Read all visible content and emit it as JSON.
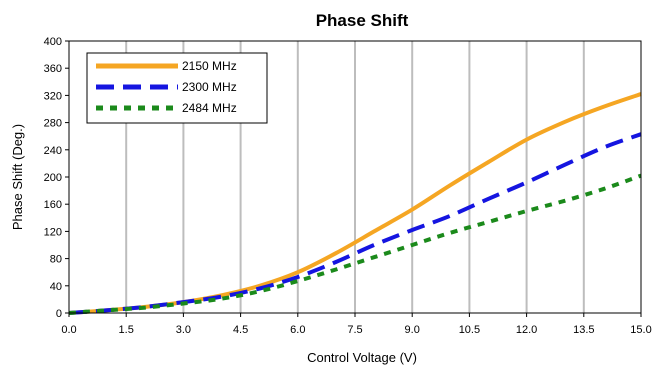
{
  "chart_data": {
    "type": "line",
    "title": "Phase Shift",
    "xlabel": "Control Voltage (V)",
    "ylabel": "Phase Shift (Deg.)",
    "xlim": [
      0,
      15
    ],
    "ylim": [
      0,
      400
    ],
    "x_ticks": [
      0,
      1.5,
      3,
      4.5,
      6,
      7.5,
      9,
      10.5,
      12,
      13.5,
      15
    ],
    "x_tick_labels": [
      "0.0",
      "1.5",
      "3.0",
      "4.5",
      "6.0",
      "7.5",
      "9.0",
      "10.5",
      "12.0",
      "13.5",
      "15.0"
    ],
    "y_ticks": [
      0,
      40,
      80,
      120,
      160,
      200,
      240,
      280,
      320,
      360,
      400
    ],
    "y_tick_labels": [
      "0",
      "40",
      "80",
      "120",
      "160",
      "200",
      "240",
      "280",
      "320",
      "360",
      "400"
    ],
    "grid": "vertical",
    "legend_position": "top-left",
    "series": [
      {
        "name": "2150 MHz",
        "color": "#f5a623",
        "style": "solid",
        "x": [
          0,
          1,
          2,
          3,
          4,
          5,
          6,
          7,
          8,
          9,
          10,
          11,
          12,
          13,
          14,
          15
        ],
        "values": [
          0,
          4,
          9,
          16,
          26,
          40,
          60,
          88,
          120,
          152,
          188,
          222,
          255,
          281,
          303,
          322
        ]
      },
      {
        "name": "2300 MHz",
        "color": "#1515e0",
        "style": "dash",
        "x": [
          0,
          1,
          2,
          3,
          4,
          5,
          6,
          7,
          8,
          9,
          10,
          11,
          12,
          13,
          14,
          15
        ],
        "values": [
          0,
          4,
          9,
          16,
          24,
          36,
          53,
          75,
          100,
          122,
          143,
          168,
          192,
          218,
          243,
          263
        ]
      },
      {
        "name": "2484 MHz",
        "color": "#1b8a1b",
        "style": "dot",
        "x": [
          0,
          1,
          2,
          3,
          4,
          5,
          6,
          7,
          8,
          9,
          10,
          11,
          12,
          13,
          14,
          15
        ],
        "values": [
          0,
          4,
          8,
          14,
          21,
          32,
          47,
          64,
          82,
          100,
          118,
          134,
          150,
          165,
          182,
          202
        ]
      }
    ]
  }
}
